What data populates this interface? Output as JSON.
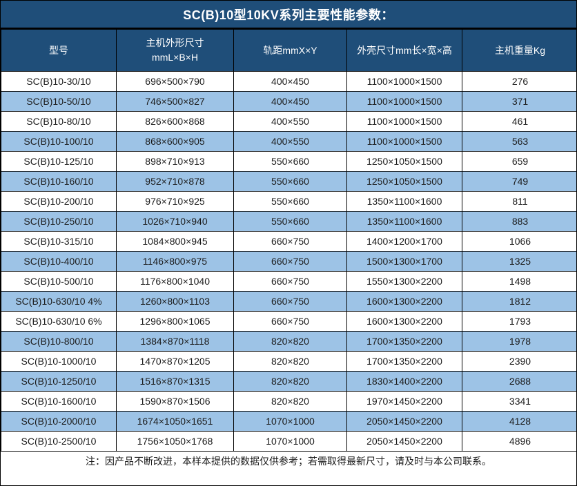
{
  "title": "SC(B)10型10KV系列主要性能参数：",
  "colors": {
    "header_bg": "#1F4E79",
    "alt_row_bg": "#9DC3E6",
    "border": "#000000",
    "header_text": "#FFFFFF",
    "body_text": "#1A1A1A"
  },
  "table": {
    "columns": [
      {
        "label": "型号",
        "label2": ""
      },
      {
        "label": "主机外形尺寸",
        "label2": "mmL×B×H"
      },
      {
        "label": "轨距mmX×Y",
        "label2": ""
      },
      {
        "label": "外壳尺寸mm长×宽×高",
        "label2": ""
      },
      {
        "label": "主机重量Kg",
        "label2": ""
      }
    ],
    "rows": [
      {
        "model": "SC(B)10-30/10",
        "host_dimensions": "696×500×790",
        "rail_gauge": "400×450",
        "shell_dimensions": "1100×1000×1500",
        "weight": "276"
      },
      {
        "model": "SC(B)10-50/10",
        "host_dimensions": "746×500×827",
        "rail_gauge": "400×450",
        "shell_dimensions": "1100×1000×1500",
        "weight": "371"
      },
      {
        "model": "SC(B)10-80/10",
        "host_dimensions": "826×600×868",
        "rail_gauge": "400×550",
        "shell_dimensions": "1100×1000×1500",
        "weight": "461"
      },
      {
        "model": "SC(B)10-100/10",
        "host_dimensions": "868×600×905",
        "rail_gauge": "400×550",
        "shell_dimensions": "1100×1000×1500",
        "weight": "563"
      },
      {
        "model": "SC(B)10-125/10",
        "host_dimensions": "898×710×913",
        "rail_gauge": "550×660",
        "shell_dimensions": "1250×1050×1500",
        "weight": "659"
      },
      {
        "model": "SC(B)10-160/10",
        "host_dimensions": "952×710×878",
        "rail_gauge": "550×660",
        "shell_dimensions": "1250×1050×1500",
        "weight": "749"
      },
      {
        "model": "SC(B)10-200/10",
        "host_dimensions": "976×710×925",
        "rail_gauge": "550×660",
        "shell_dimensions": "1350×1100×1600",
        "weight": "811"
      },
      {
        "model": "SC(B)10-250/10",
        "host_dimensions": "1026×710×940",
        "rail_gauge": "550×660",
        "shell_dimensions": "1350×1100×1600",
        "weight": "883"
      },
      {
        "model": "SC(B)10-315/10",
        "host_dimensions": "1084×800×945",
        "rail_gauge": "660×750",
        "shell_dimensions": "1400×1200×1700",
        "weight": "1066"
      },
      {
        "model": "SC(B)10-400/10",
        "host_dimensions": "1146×800×975",
        "rail_gauge": "660×750",
        "shell_dimensions": "1500×1300×1700",
        "weight": "1325"
      },
      {
        "model": "SC(B)10-500/10",
        "host_dimensions": "1176×800×1040",
        "rail_gauge": "660×750",
        "shell_dimensions": "1550×1300×2200",
        "weight": "1498"
      },
      {
        "model": "SC(B)10-630/10 4%",
        "host_dimensions": "1260×800×1103",
        "rail_gauge": "660×750",
        "shell_dimensions": "1600×1300×2200",
        "weight": "1812"
      },
      {
        "model": "SC(B)10-630/10 6%",
        "host_dimensions": "1296×800×1065",
        "rail_gauge": "660×750",
        "shell_dimensions": "1600×1300×2200",
        "weight": "1793"
      },
      {
        "model": "SC(B)10-800/10",
        "host_dimensions": "1384×870×1118",
        "rail_gauge": "820×820",
        "shell_dimensions": "1700×1350×2200",
        "weight": "1978"
      },
      {
        "model": "SC(B)10-1000/10",
        "host_dimensions": "1470×870×1205",
        "rail_gauge": "820×820",
        "shell_dimensions": "1700×1350×2200",
        "weight": "2390"
      },
      {
        "model": "SC(B)10-1250/10",
        "host_dimensions": "1516×870×1315",
        "rail_gauge": "820×820",
        "shell_dimensions": "1830×1400×2200",
        "weight": "2688"
      },
      {
        "model": "SC(B)10-1600/10",
        "host_dimensions": "1590×870×1506",
        "rail_gauge": "820×820",
        "shell_dimensions": "1970×1450×2200",
        "weight": "3341"
      },
      {
        "model": "SC(B)10-2000/10",
        "host_dimensions": "1674×1050×1651",
        "rail_gauge": "1070×1000",
        "shell_dimensions": "2050×1450×2200",
        "weight": "4128"
      },
      {
        "model": "SC(B)10-2500/10",
        "host_dimensions": "1756×1050×1768",
        "rail_gauge": "1070×1000",
        "shell_dimensions": "2050×1450×2200",
        "weight": "4896"
      }
    ]
  },
  "footer_note": "注：因产品不断改进，本样本提供的数据仅供参考；若需取得最新尺寸，请及时与本公司联系。"
}
